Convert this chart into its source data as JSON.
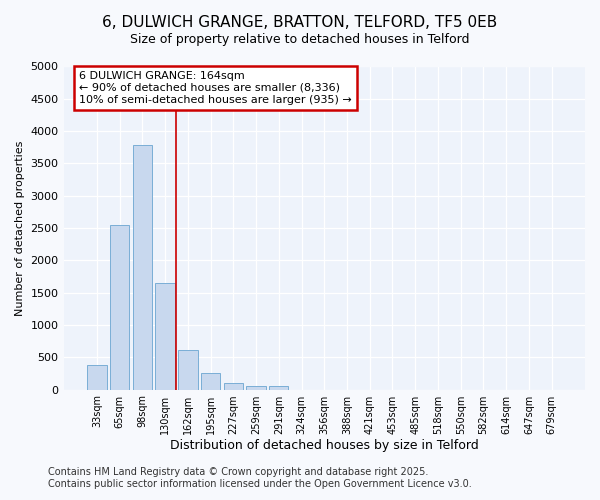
{
  "title_line1": "6, DULWICH GRANGE, BRATTON, TELFORD, TF5 0EB",
  "title_line2": "Size of property relative to detached houses in Telford",
  "xlabel": "Distribution of detached houses by size in Telford",
  "ylabel": "Number of detached properties",
  "categories": [
    "33sqm",
    "65sqm",
    "98sqm",
    "130sqm",
    "162sqm",
    "195sqm",
    "227sqm",
    "259sqm",
    "291sqm",
    "324sqm",
    "356sqm",
    "388sqm",
    "421sqm",
    "453sqm",
    "485sqm",
    "518sqm",
    "550sqm",
    "582sqm",
    "614sqm",
    "647sqm",
    "679sqm"
  ],
  "values": [
    380,
    2550,
    3780,
    1650,
    620,
    250,
    100,
    50,
    50,
    0,
    0,
    0,
    0,
    0,
    0,
    0,
    0,
    0,
    0,
    0,
    0
  ],
  "bar_color": "#c8d8ee",
  "bar_edge_color": "#7aaed6",
  "vline_index": 3,
  "vline_color": "#cc0000",
  "annotation_line1": "6 DULWICH GRANGE: 164sqm",
  "annotation_line2": "← 90% of detached houses are smaller (8,336)",
  "annotation_line3": "10% of semi-detached houses are larger (935) →",
  "annotation_box_facecolor": "#ffffff",
  "annotation_box_edgecolor": "#cc0000",
  "plot_bg_color": "#eef3fb",
  "fig_bg_color": "#f7f9fd",
  "grid_color": "#ffffff",
  "ylim": [
    0,
    5000
  ],
  "yticks": [
    0,
    500,
    1000,
    1500,
    2000,
    2500,
    3000,
    3500,
    4000,
    4500,
    5000
  ],
  "title_fontsize": 11,
  "subtitle_fontsize": 9,
  "ylabel_fontsize": 8,
  "xlabel_fontsize": 9,
  "tick_fontsize": 8,
  "annot_fontsize": 8,
  "footer_line1": "Contains HM Land Registry data © Crown copyright and database right 2025.",
  "footer_line2": "Contains public sector information licensed under the Open Government Licence v3.0.",
  "footer_fontsize": 7
}
